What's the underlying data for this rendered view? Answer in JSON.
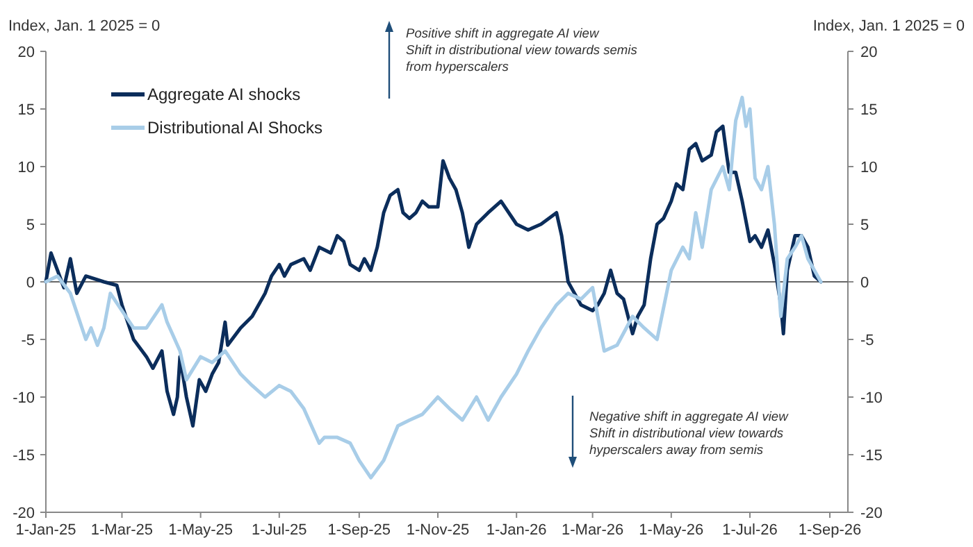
{
  "chart_data": {
    "type": "line",
    "ylabel": "Index, Jan. 1 2025 = 0",
    "y2label": "Index, Jan. 1 2025 = 0",
    "xlim": [
      "2025-01-01",
      "2026-09-15"
    ],
    "xticks": [
      {
        "value": "2025-01-01",
        "label": "1-Jan-25"
      },
      {
        "value": "2025-03-01",
        "label": "1-Mar-25"
      },
      {
        "value": "2025-05-01",
        "label": "1-May-25"
      },
      {
        "value": "2025-07-01",
        "label": "1-Jul-25"
      },
      {
        "value": "2025-09-01",
        "label": "1-Sep-25"
      },
      {
        "value": "2025-11-01",
        "label": "1-Nov-25"
      },
      {
        "value": "2026-01-01",
        "label": "1-Jan-26"
      },
      {
        "value": "2026-03-01",
        "label": "1-Mar-26"
      },
      {
        "value": "2026-05-01",
        "label": "1-May-26"
      },
      {
        "value": "2026-07-01",
        "label": "1-Jul-26"
      },
      {
        "value": "2026-09-01",
        "label": "1-Sep-26"
      }
    ],
    "ylim": [
      -20,
      20
    ],
    "yticks": [
      -20,
      -15,
      -10,
      -5,
      0,
      5,
      10,
      15,
      20
    ],
    "y2lim": [
      -20,
      20
    ],
    "y2ticks": [
      -20,
      -15,
      -10,
      -5,
      0,
      5,
      10,
      15,
      20
    ],
    "legend": "top left",
    "grid": false,
    "ref_lines": [
      {
        "axis": "y",
        "value": 0
      }
    ],
    "annotations": [
      "Positive shift in aggregate AI view\nShift in distributional view towards semis\nfrom hyperscalers",
      "Negative shift in aggregate AI view\nShift in distributional view towards\nhyperscalers away from semis"
    ],
    "series": [
      {
        "name": "Aggregate AI shocks",
        "color": "#0b2d5b",
        "x": [
          "2025-01-01",
          "2025-01-05",
          "2025-01-10",
          "2025-01-15",
          "2025-01-20",
          "2025-01-25",
          "2025-02-01",
          "2025-02-15",
          "2025-02-25",
          "2025-03-01",
          "2025-03-10",
          "2025-03-20",
          "2025-03-25",
          "2025-04-01",
          "2025-04-05",
          "2025-04-10",
          "2025-04-13",
          "2025-04-15",
          "2025-04-20",
          "2025-04-25",
          "2025-04-30",
          "2025-05-05",
          "2025-05-10",
          "2025-05-15",
          "2025-05-20",
          "2025-05-22",
          "2025-06-01",
          "2025-06-10",
          "2025-06-20",
          "2025-06-25",
          "2025-07-01",
          "2025-07-05",
          "2025-07-10",
          "2025-07-20",
          "2025-07-25",
          "2025-08-01",
          "2025-08-10",
          "2025-08-15",
          "2025-08-20",
          "2025-08-25",
          "2025-09-01",
          "2025-09-05",
          "2025-09-10",
          "2025-09-15",
          "2025-09-20",
          "2025-09-25",
          "2025-10-01",
          "2025-10-05",
          "2025-10-10",
          "2025-10-15",
          "2025-10-20",
          "2025-10-25",
          "2025-11-01",
          "2025-11-05",
          "2025-11-10",
          "2025-11-15",
          "2025-11-20",
          "2025-11-25",
          "2025-12-01",
          "2025-12-10",
          "2025-12-20",
          "2026-01-01",
          "2026-01-10",
          "2026-01-20",
          "2026-02-01",
          "2026-02-05",
          "2026-02-10",
          "2026-02-15",
          "2026-02-20",
          "2026-03-01",
          "2026-03-05",
          "2026-03-10",
          "2026-03-15",
          "2026-03-20",
          "2026-03-25",
          "2026-04-01",
          "2026-04-05",
          "2026-04-10",
          "2026-04-15",
          "2026-04-20",
          "2026-04-25",
          "2026-05-01",
          "2026-05-05",
          "2026-05-10",
          "2026-05-15",
          "2026-05-20",
          "2026-05-25",
          "2026-06-01",
          "2026-06-05",
          "2026-06-10",
          "2026-06-13",
          "2026-06-15",
          "2026-06-20",
          "2026-06-25",
          "2026-07-01",
          "2026-07-05",
          "2026-07-10",
          "2026-07-15",
          "2026-07-20",
          "2026-07-25",
          "2026-07-27",
          "2026-07-30",
          "2026-08-05",
          "2026-08-10",
          "2026-08-15",
          "2026-08-20",
          "2026-08-25"
        ],
        "values": [
          0,
          2.5,
          1,
          -0.5,
          2,
          -1,
          0.5,
          0,
          -0.3,
          -2,
          -5,
          -6.5,
          -7.5,
          -6,
          -9.5,
          -11.5,
          -10,
          -6.5,
          -10,
          -12.5,
          -8.5,
          -9.5,
          -8,
          -7,
          -3.5,
          -5.5,
          -4,
          -3,
          -1,
          0.5,
          1.5,
          0.5,
          1.5,
          2,
          1,
          3,
          2.5,
          4,
          3.5,
          1.5,
          1,
          2,
          1,
          3,
          6,
          7.5,
          8,
          6,
          5.5,
          6,
          7,
          6.5,
          6.5,
          10.5,
          9,
          8,
          6,
          3,
          5,
          6,
          7,
          5,
          4.5,
          5,
          6,
          4,
          0,
          -1,
          -2,
          -2.5,
          -2,
          -1,
          1,
          -1,
          -1.5,
          -4.5,
          -3,
          -2,
          2,
          5,
          5.5,
          7,
          8.5,
          8,
          11.5,
          12,
          10.5,
          11,
          13,
          13.5,
          11,
          9.5,
          9.5,
          7,
          3.5,
          4,
          3,
          4.5,
          1.5,
          -2,
          -4.5,
          1,
          4,
          4,
          3,
          0.5,
          0
        ]
      },
      {
        "name": "Distributional AI Shocks",
        "color": "#a8cde8",
        "x": [
          "2025-01-01",
          "2025-01-10",
          "2025-01-20",
          "2025-02-01",
          "2025-02-05",
          "2025-02-10",
          "2025-02-15",
          "2025-02-20",
          "2025-03-10",
          "2025-03-20",
          "2025-04-01",
          "2025-04-05",
          "2025-04-15",
          "2025-04-20",
          "2025-05-01",
          "2025-05-10",
          "2025-05-20",
          "2025-06-01",
          "2025-06-10",
          "2025-06-20",
          "2025-07-01",
          "2025-07-10",
          "2025-07-20",
          "2025-08-01",
          "2025-08-05",
          "2025-08-15",
          "2025-08-25",
          "2025-09-01",
          "2025-09-10",
          "2025-09-20",
          "2025-10-01",
          "2025-10-10",
          "2025-10-20",
          "2025-11-01",
          "2025-11-10",
          "2025-11-20",
          "2025-12-01",
          "2025-12-10",
          "2025-12-20",
          "2026-01-01",
          "2026-01-10",
          "2026-01-20",
          "2026-02-01",
          "2026-02-10",
          "2026-02-20",
          "2026-03-01",
          "2026-03-05",
          "2026-03-10",
          "2026-03-20",
          "2026-04-01",
          "2026-04-10",
          "2026-04-20",
          "2026-05-01",
          "2026-05-10",
          "2026-05-15",
          "2026-05-20",
          "2026-05-25",
          "2026-06-01",
          "2026-06-10",
          "2026-06-15",
          "2026-06-20",
          "2026-06-25",
          "2026-06-28",
          "2026-07-01",
          "2026-07-05",
          "2026-07-10",
          "2026-07-15",
          "2026-07-20",
          "2026-07-25",
          "2026-07-30",
          "2026-08-05",
          "2026-08-10",
          "2026-08-15",
          "2026-08-20",
          "2026-08-25"
        ],
        "values": [
          0,
          0.5,
          -1,
          -5,
          -4,
          -5.5,
          -4,
          -1,
          -4,
          -4,
          -2,
          -3.5,
          -6,
          -8.5,
          -6.5,
          -7,
          -6,
          -8,
          -9,
          -10,
          -9,
          -9.5,
          -11,
          -14,
          -13.5,
          -13.5,
          -14,
          -15.5,
          -17,
          -15.5,
          -12.5,
          -12,
          -11.5,
          -10,
          -11,
          -12,
          -10,
          -12,
          -10,
          -8,
          -6,
          -4,
          -2,
          -1,
          -1.5,
          -0.5,
          -3,
          -6,
          -5.5,
          -3,
          -4,
          -5,
          1,
          3,
          2,
          6,
          3,
          8,
          10,
          8,
          14,
          16,
          13.5,
          15,
          9,
          8,
          10,
          5,
          -3,
          2,
          3,
          4,
          2,
          1,
          0
        ]
      }
    ]
  }
}
